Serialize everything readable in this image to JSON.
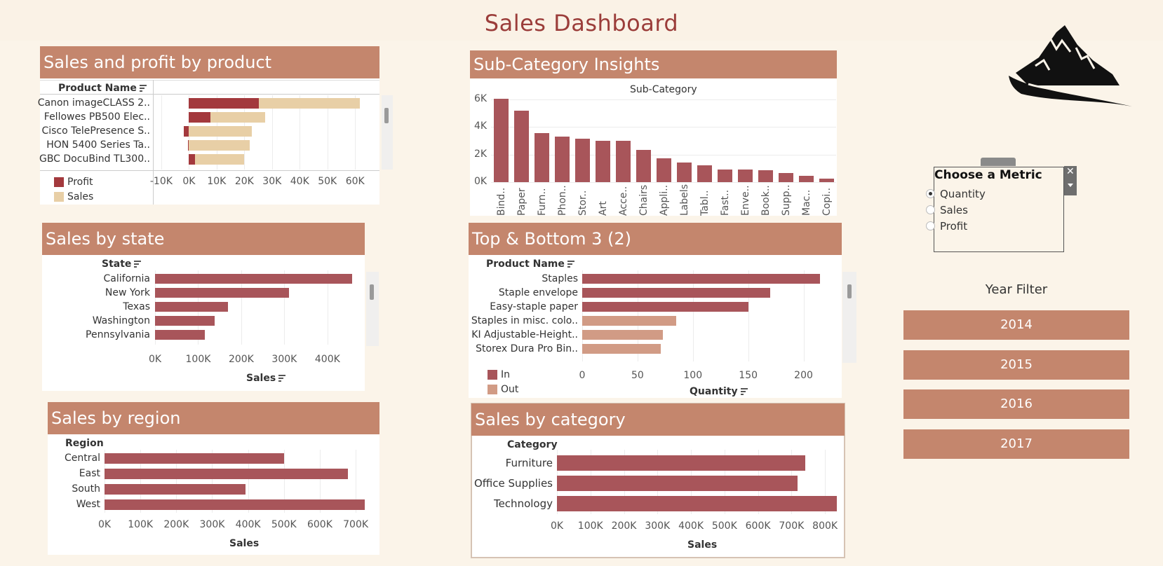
{
  "dashboard": {
    "title": "Sales Dashboard",
    "colors": {
      "header": "#c4866d",
      "bar": "#a8555a",
      "sales_light": "#e8cfa6",
      "profit": "#a3393d",
      "out": "#d19b85"
    }
  },
  "icons": {
    "logo": "mountain-logo-icon",
    "close": "close-icon",
    "dropdown": "chevron-down-icon",
    "sort": "sort-icon"
  },
  "product_panel": {
    "title": "Sales and profit by product",
    "field_header": "Product Name",
    "legend": [
      "Profit",
      "Sales"
    ]
  },
  "subcat_panel": {
    "title": "Sub-Category Insights",
    "field_header": "Sub-Category"
  },
  "state_panel": {
    "title": "Sales by state",
    "field_header": "State",
    "axis_label": "Sales"
  },
  "topbottom_panel": {
    "title": "Top & Bottom 3 (2)",
    "field_header": "Product Name",
    "axis_label": "Quantity",
    "legend": [
      "In",
      "Out"
    ]
  },
  "region_panel": {
    "title": "Sales by region",
    "field_header": "Region",
    "axis_label": "Sales"
  },
  "category_panel": {
    "title": "Sales by  category",
    "field_header": "Category",
    "axis_label": "Sales"
  },
  "metric_control": {
    "title": "Choose a Metric",
    "options": [
      "Quantity",
      "Sales",
      "Profit"
    ],
    "selected": "Quantity"
  },
  "year_filter": {
    "title": "Year Filter",
    "years": [
      "2014",
      "2015",
      "2016",
      "2017"
    ]
  },
  "chart_data": [
    {
      "id": "product",
      "type": "bar",
      "orientation": "horizontal",
      "title": "Sales and profit by product",
      "categories": [
        "Canon imageCLASS 2..",
        "Fellowes PB500 Elec..",
        "Cisco TelePresence S..",
        "HON 5400 Series Ta..",
        "GBC DocuBind TL300.."
      ],
      "series": [
        {
          "name": "Profit",
          "values": [
            25200,
            7750,
            -1860,
            -400,
            2150
          ]
        },
        {
          "name": "Sales",
          "values": [
            61600,
            27400,
            22600,
            21870,
            19820
          ]
        }
      ],
      "xlim": [
        -12000,
        64000
      ],
      "ticks": [
        -10000,
        0,
        10000,
        20000,
        30000,
        40000,
        50000,
        60000
      ],
      "tick_labels": [
        "-10K",
        "0K",
        "10K",
        "20K",
        "30K",
        "40K",
        "50K",
        "60K"
      ]
    },
    {
      "id": "subcat",
      "type": "bar",
      "title": "Sub-Category",
      "categories": [
        "Bind..",
        "Paper",
        "Furn..",
        "Phon..",
        "Stor..",
        "Art",
        "Acce..",
        "Chairs",
        "Appli..",
        "Labels",
        "Tabl..",
        "Fast..",
        "Enve..",
        "Book..",
        "Supp..",
        "Mac..",
        "Copi.."
      ],
      "values": [
        6050,
        5180,
        3560,
        3290,
        3160,
        3000,
        2980,
        2360,
        1730,
        1400,
        1240,
        910,
        900,
        870,
        650,
        440,
        230
      ],
      "ylim": [
        -400,
        6400
      ],
      "ticks": [
        0,
        2000,
        4000,
        6000
      ],
      "tick_labels": [
        "0K",
        "2K",
        "4K",
        "6K"
      ]
    },
    {
      "id": "state",
      "type": "bar",
      "orientation": "horizontal",
      "categories": [
        "California",
        "New York",
        "Texas",
        "Washington",
        "Pennsylvania"
      ],
      "values": [
        457000,
        310000,
        170000,
        138000,
        116000
      ],
      "xlim": [
        0,
        480000
      ],
      "ticks": [
        0,
        100000,
        200000,
        300000,
        400000
      ],
      "tick_labels": [
        "0K",
        "100K",
        "200K",
        "300K",
        "400K"
      ],
      "xlabel": "Sales"
    },
    {
      "id": "topbottom",
      "type": "bar",
      "orientation": "horizontal",
      "categories": [
        "Staples",
        "Staple envelope",
        "Easy-staple paper",
        "Staples in misc. colo..",
        "KI Adjustable-Height..",
        "Storex Dura Pro Bin.."
      ],
      "values": [
        215,
        170,
        150,
        85,
        73,
        71
      ],
      "groups": [
        "In",
        "In",
        "In",
        "Out",
        "Out",
        "Out"
      ],
      "xlim": [
        0,
        225
      ],
      "ticks": [
        0,
        50,
        100,
        150,
        200
      ],
      "tick_labels": [
        "0",
        "50",
        "100",
        "150",
        "200"
      ],
      "xlabel": "Quantity"
    },
    {
      "id": "region",
      "type": "bar",
      "orientation": "horizontal",
      "categories": [
        "Central",
        "East",
        "South",
        "West"
      ],
      "values": [
        501000,
        679000,
        392000,
        725000
      ],
      "xlim": [
        0,
        735000
      ],
      "ticks": [
        0,
        100000,
        200000,
        300000,
        400000,
        500000,
        600000,
        700000
      ],
      "tick_labels": [
        "0K",
        "100K",
        "200K",
        "300K",
        "400K",
        "500K",
        "600K",
        "700K"
      ],
      "xlabel": "Sales"
    },
    {
      "id": "category",
      "type": "bar",
      "orientation": "horizontal",
      "categories": [
        "Furniture",
        "Office Supplies",
        "Technology"
      ],
      "values": [
        742000,
        719000,
        836000
      ],
      "xlim": [
        0,
        850000
      ],
      "ticks": [
        0,
        100000,
        200000,
        300000,
        400000,
        500000,
        600000,
        700000,
        800000
      ],
      "tick_labels": [
        "0K",
        "100K",
        "200K",
        "300K",
        "400K",
        "500K",
        "600K",
        "700K",
        "800K"
      ],
      "xlabel": "Sales"
    }
  ]
}
